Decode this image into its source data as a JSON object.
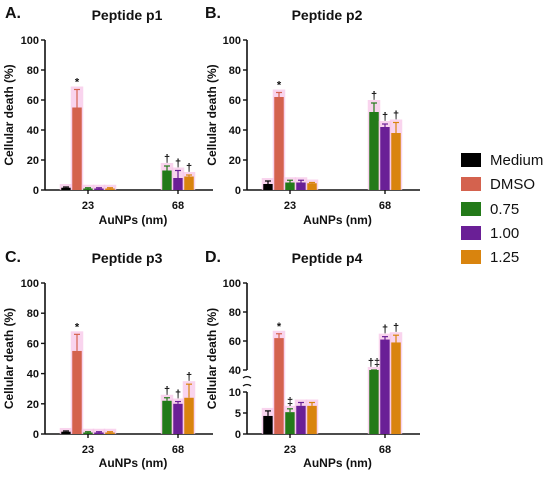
{
  "series_meta": [
    {
      "name": "Medium",
      "color": "#000000"
    },
    {
      "name": "DMSO",
      "color": "#d4624e"
    },
    {
      "name": "0.75",
      "color": "#237a19"
    },
    {
      "name": "1.00",
      "color": "#6a1f96"
    },
    {
      "name": "1.25",
      "color": "#d9840e"
    }
  ],
  "highlight_color": "#f7c6e8",
  "chart_data": [
    {
      "type": "bar",
      "panel": "A.",
      "title": "Peptide p1",
      "xlabel": "AuNPs (nm)",
      "ylabel": "Cellular death (%)",
      "ylim": [
        0,
        100
      ],
      "yticks": [
        "0",
        "20",
        "40",
        "60",
        "80",
        "100"
      ],
      "categories": [
        "23",
        "68"
      ],
      "series": [
        {
          "name": "Medium",
          "values": [
            1.5,
            null
          ],
          "errors": [
            0.5,
            null
          ]
        },
        {
          "name": "DMSO",
          "values": [
            55,
            null
          ],
          "errors": [
            12,
            null
          ]
        },
        {
          "name": "0.75",
          "values": [
            1,
            13
          ],
          "errors": [
            0.5,
            3
          ]
        },
        {
          "name": "1.00",
          "values": [
            1,
            8
          ],
          "errors": [
            0.5,
            5
          ]
        },
        {
          "name": "1.25",
          "values": [
            1,
            9
          ],
          "errors": [
            0.5,
            1
          ]
        }
      ],
      "annotations": [
        {
          "group": 0,
          "series": 1,
          "text": "*"
        },
        {
          "group": 1,
          "series": 2,
          "text": "†"
        },
        {
          "group": 1,
          "series": 3,
          "text": "†"
        },
        {
          "group": 1,
          "series": 4,
          "text": "†"
        }
      ]
    },
    {
      "type": "bar",
      "panel": "B.",
      "title": "Peptide p2",
      "xlabel": "AuNPs (nm)",
      "ylabel": "Cellular death (%)",
      "ylim": [
        0,
        100
      ],
      "yticks": [
        "0",
        "20",
        "40",
        "60",
        "80",
        "100"
      ],
      "categories": [
        "23",
        "68"
      ],
      "series": [
        {
          "name": "Medium",
          "values": [
            4,
            null
          ],
          "errors": [
            2,
            null
          ]
        },
        {
          "name": "DMSO",
          "values": [
            62,
            null
          ],
          "errors": [
            3,
            null
          ]
        },
        {
          "name": "0.75",
          "values": [
            5,
            52
          ],
          "errors": [
            1.5,
            6
          ]
        },
        {
          "name": "1.00",
          "values": [
            5,
            42
          ],
          "errors": [
            1.5,
            2
          ]
        },
        {
          "name": "1.25",
          "values": [
            4.5,
            38
          ],
          "errors": [
            0.5,
            7
          ]
        }
      ],
      "annotations": [
        {
          "group": 0,
          "series": 1,
          "text": "*"
        },
        {
          "group": 1,
          "series": 2,
          "text": "†"
        },
        {
          "group": 1,
          "series": 3,
          "text": "†"
        },
        {
          "group": 1,
          "series": 4,
          "text": "†"
        }
      ]
    },
    {
      "type": "bar",
      "panel": "C.",
      "title": "Peptide p3",
      "xlabel": "AuNPs (nm)",
      "ylabel": "Cellular death (%)",
      "ylim": [
        0,
        100
      ],
      "yticks": [
        "0",
        "20",
        "40",
        "60",
        "80",
        "100"
      ],
      "categories": [
        "23",
        "68"
      ],
      "series": [
        {
          "name": "Medium",
          "values": [
            1.5,
            null
          ],
          "errors": [
            0.5,
            null
          ]
        },
        {
          "name": "DMSO",
          "values": [
            55,
            null
          ],
          "errors": [
            11,
            null
          ]
        },
        {
          "name": "0.75",
          "values": [
            1,
            22
          ],
          "errors": [
            0.5,
            2
          ]
        },
        {
          "name": "1.00",
          "values": [
            1,
            20
          ],
          "errors": [
            0.5,
            1.5
          ]
        },
        {
          "name": "1.25",
          "values": [
            1,
            24
          ],
          "errors": [
            0.5,
            9
          ]
        }
      ],
      "annotations": [
        {
          "group": 0,
          "series": 1,
          "text": "*"
        },
        {
          "group": 1,
          "series": 2,
          "text": "†"
        },
        {
          "group": 1,
          "series": 3,
          "text": "†"
        },
        {
          "group": 1,
          "series": 4,
          "text": "†"
        }
      ]
    },
    {
      "type": "bar",
      "panel": "D.",
      "title": "Peptide p4",
      "xlabel": "AuNPs (nm)",
      "ylabel": "Cellular death (%)",
      "broken_axis": true,
      "lower_ylim": [
        0,
        10
      ],
      "upper_ylim": [
        40,
        100
      ],
      "yticks": [
        "0",
        "5",
        "10",
        "40",
        "60",
        "80",
        "100"
      ],
      "categories": [
        "23",
        "68"
      ],
      "series": [
        {
          "name": "Medium",
          "values": [
            4.3,
            null
          ],
          "errors": [
            1.2,
            null
          ]
        },
        {
          "name": "DMSO",
          "values": [
            62,
            null
          ],
          "errors": [
            3,
            null
          ]
        },
        {
          "name": "0.75",
          "values": [
            5.2,
            36
          ],
          "errors": [
            0.8,
            1.5
          ]
        },
        {
          "name": "1.00",
          "values": [
            6.7,
            61
          ],
          "errors": [
            0.8,
            2
          ]
        },
        {
          "name": "1.25",
          "values": [
            6.7,
            59
          ],
          "errors": [
            0.8,
            5
          ]
        }
      ],
      "annotations": [
        {
          "group": 0,
          "series": 1,
          "text": "*"
        },
        {
          "group": 0,
          "series": 2,
          "text": "‡"
        },
        {
          "group": 1,
          "series": 2,
          "text": "†‡"
        },
        {
          "group": 1,
          "series": 3,
          "text": "†"
        },
        {
          "group": 1,
          "series": 4,
          "text": "†"
        }
      ]
    }
  ]
}
